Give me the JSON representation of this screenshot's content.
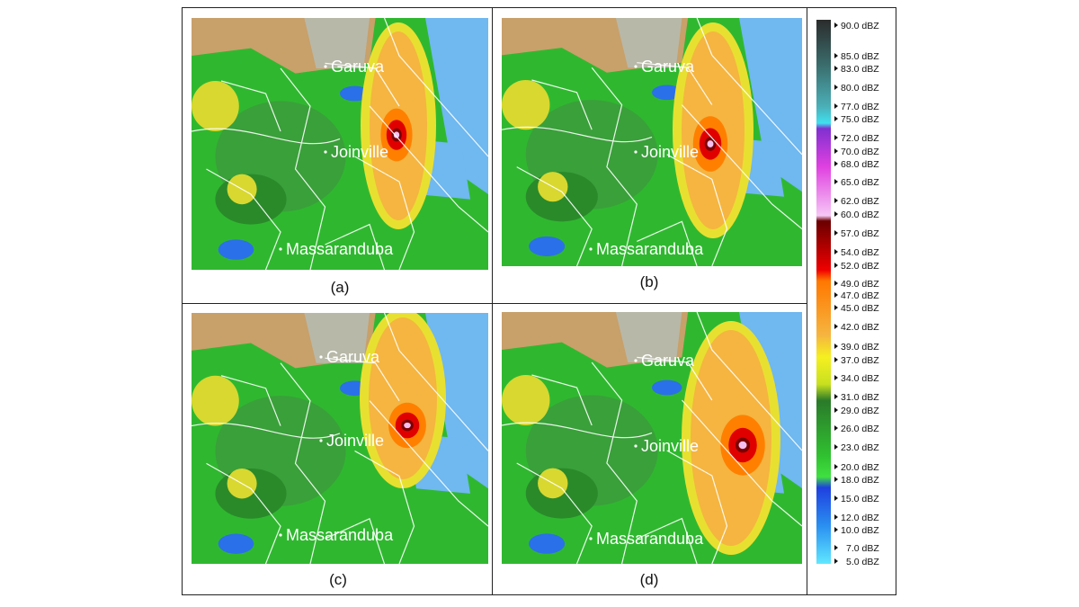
{
  "panels": [
    {
      "caption": "(a)",
      "cities": [
        "Garuva",
        "Joinville",
        "Massaranduba"
      ]
    },
    {
      "caption": "(b)",
      "cities": [
        "Garuva",
        "Joinville",
        "Massaranduba"
      ]
    },
    {
      "caption": "(c)",
      "cities": [
        "Garuva",
        "Joinville",
        "Massaranduba"
      ]
    },
    {
      "caption": "(d)",
      "cities": [
        "Garuva",
        "Joinville",
        "Massaranduba"
      ]
    }
  ],
  "legend": {
    "labels": [
      "90.0 dBZ",
      "85.0 dBZ",
      "83.0 dBZ",
      "80.0 dBZ",
      "77.0 dBZ",
      "75.0 dBZ",
      "72.0 dBZ",
      "70.0 dBZ",
      "68.0 dBZ",
      "65.0 dBZ",
      "62.0 dBZ",
      "60.0 dBZ",
      "57.0 dBZ",
      "54.0 dBZ",
      "52.0 dBZ",
      "49.0 dBZ",
      "47.0 dBZ",
      "45.0 dBZ",
      "42.0 dBZ",
      "39.0 dBZ",
      "37.0 dBZ",
      "34.0 dBZ",
      "31.0 dBZ",
      "29.0 dBZ",
      "26.0 dBZ",
      "23.0 dBZ",
      "20.0 dBZ",
      "18.0 dBZ",
      "15.0 dBZ",
      "12.0 dBZ",
      "10.0 dBZ",
      "7.0 dBZ",
      "5.0 dBZ"
    ],
    "colors": {
      "90": "#2b2b2b",
      "80": "#3b7a7a",
      "75": "#3fd8e8",
      "70": "#9a2fd0",
      "65": "#e040e0",
      "60": "#f0b8f0",
      "57": "#7a0000",
      "52": "#e00000",
      "47": "#ff8000",
      "42": "#f5b640",
      "37": "#f0f020",
      "31": "#2e8b2e",
      "26": "#2fb82f",
      "20": "#30d030",
      "15": "#1f5fe0",
      "10": "#2a90f0",
      "5": "#50e0ff"
    }
  }
}
